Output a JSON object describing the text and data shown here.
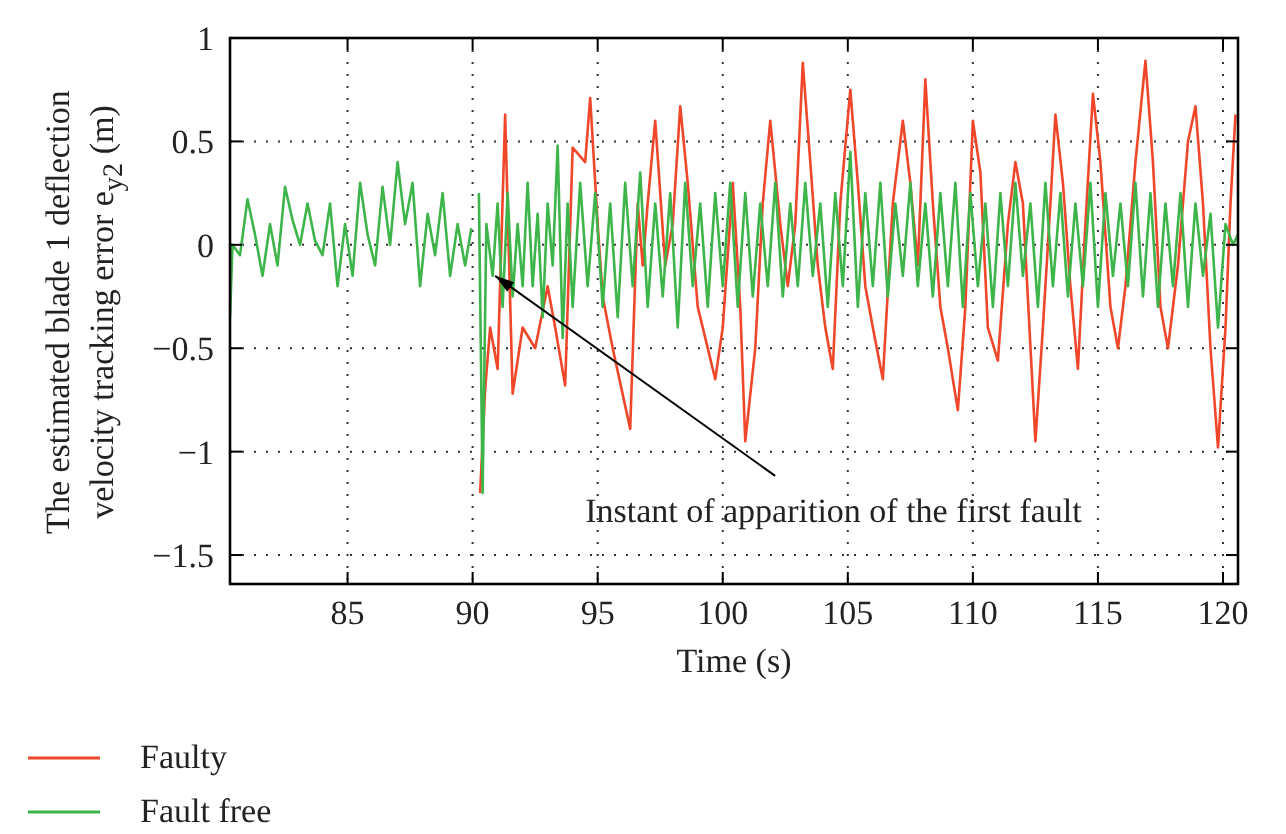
{
  "chart_data": {
    "type": "line",
    "xlabel": "Time (s)",
    "ylabel": "The estimated blade 1 deflection velocity tracking error e$_{y2}$ (m)",
    "xlim": [
      80.3,
      120.6
    ],
    "xticks": [
      85,
      90,
      95,
      100,
      105,
      110,
      115,
      120
    ],
    "ylim": [
      -1.64,
      1
    ],
    "yticks": [
      1,
      0.5,
      0,
      {
        "value": -0.5,
        "label": "−0.5"
      },
      {
        "value": -1,
        "label": "−1"
      },
      {
        "value": -1.5,
        "label": "−1.5"
      }
    ],
    "grid": true,
    "legend": "bottom",
    "marker": "none",
    "annotations": [
      {
        "text": "Instant of apparition of the first fault",
        "x": 90.9,
        "y": -0.15
      }
    ],
    "series": [
      {
        "name": "Faulty",
        "color": "#f0462a",
        "x": [
          90.3,
          90.5,
          90.7,
          91.0,
          91.3,
          91.6,
          92.0,
          92.5,
          93.0,
          93.3,
          93.7,
          94.0,
          94.5,
          94.7,
          95.0,
          95.2,
          95.6,
          96.3,
          96.6,
          96.8,
          97.0,
          97.3,
          97.7,
          98.0,
          98.3,
          98.6,
          99.0,
          99.7,
          100.0,
          100.4,
          100.7,
          100.9,
          101.3,
          101.6,
          101.9,
          102.3,
          102.6,
          102.9,
          103.2,
          103.5,
          103.8,
          104.1,
          104.4,
          104.7,
          105.1,
          105.4,
          105.7,
          106.0,
          106.4,
          106.8,
          107.2,
          107.5,
          107.8,
          108.1,
          108.4,
          108.7,
          109.0,
          109.4,
          109.7,
          110.0,
          110.3,
          110.6,
          111.0,
          111.4,
          111.7,
          112.0,
          112.5,
          112.8,
          113.1,
          113.3,
          113.6,
          113.9,
          114.2,
          114.5,
          114.8,
          115.1,
          115.5,
          115.8,
          116.1,
          116.5,
          116.9,
          117.2,
          117.5,
          117.8,
          118.2,
          118.6,
          118.9,
          119.2,
          119.5,
          119.8,
          120.1,
          120.3,
          120.5
        ],
        "values": [
          -1.2,
          -0.7,
          -0.4,
          -0.6,
          0.63,
          -0.72,
          -0.4,
          -0.5,
          -0.2,
          -0.4,
          -0.68,
          0.47,
          0.4,
          0.71,
          0.1,
          -0.25,
          -0.5,
          -0.89,
          0.2,
          -0.1,
          0.2,
          0.6,
          -0.1,
          0.1,
          0.67,
          0.3,
          -0.3,
          -0.65,
          -0.4,
          0.3,
          -0.3,
          -0.95,
          -0.5,
          0.2,
          0.6,
          0.1,
          -0.2,
          0.1,
          0.88,
          0.4,
          -0.1,
          -0.4,
          -0.6,
          0.2,
          0.75,
          0.3,
          -0.2,
          -0.4,
          -0.65,
          0.2,
          0.6,
          0.3,
          -0.1,
          0.8,
          0.2,
          -0.3,
          -0.5,
          -0.8,
          -0.3,
          0.6,
          0.35,
          -0.4,
          -0.56,
          0.1,
          0.4,
          0.2,
          -0.95,
          -0.4,
          0.2,
          0.63,
          0.3,
          -0.2,
          -0.6,
          0.1,
          0.73,
          0.4,
          -0.3,
          -0.5,
          -0.2,
          0.4,
          0.89,
          0.4,
          -0.3,
          -0.5,
          -0.1,
          0.5,
          0.67,
          0.2,
          -0.5,
          -0.98,
          -0.4,
          0.2,
          0.63
        ]
      },
      {
        "name": "Fault free",
        "color": "#3db54a",
        "x": [
          80.3,
          80.4,
          80.7,
          81.0,
          81.3,
          81.6,
          81.9,
          82.2,
          82.5,
          82.8,
          83.1,
          83.4,
          83.7,
          84.0,
          84.3,
          84.6,
          84.9,
          85.2,
          85.5,
          85.8,
          86.1,
          86.4,
          86.7,
          87.0,
          87.3,
          87.6,
          87.9,
          88.2,
          88.5,
          88.8,
          89.1,
          89.4,
          89.7,
          89.95,
          90.05,
          90.15,
          90.25,
          90.4,
          90.55,
          90.8,
          91.0,
          91.2,
          91.4,
          91.6,
          91.8,
          92.0,
          92.2,
          92.4,
          92.6,
          92.8,
          93.0,
          93.2,
          93.4,
          93.6,
          93.8,
          94.0,
          94.3,
          94.6,
          94.9,
          95.2,
          95.5,
          95.8,
          96.1,
          96.4,
          96.7,
          97.0,
          97.3,
          97.6,
          97.9,
          98.2,
          98.5,
          98.8,
          99.1,
          99.4,
          99.7,
          100.0,
          100.3,
          100.6,
          100.9,
          101.2,
          101.5,
          101.8,
          102.1,
          102.4,
          102.7,
          103.0,
          103.3,
          103.6,
          103.9,
          104.2,
          104.5,
          104.8,
          105.1,
          105.4,
          105.7,
          106.0,
          106.3,
          106.6,
          106.9,
          107.2,
          107.5,
          107.8,
          108.1,
          108.4,
          108.7,
          109.0,
          109.3,
          109.6,
          109.9,
          110.2,
          110.5,
          110.8,
          111.1,
          111.4,
          111.7,
          112.0,
          112.3,
          112.6,
          112.9,
          113.2,
          113.5,
          113.8,
          114.1,
          114.4,
          114.7,
          115.0,
          115.3,
          115.6,
          115.9,
          116.2,
          116.5,
          116.8,
          117.1,
          117.4,
          117.7,
          118.0,
          118.3,
          118.6,
          118.9,
          119.2,
          119.5,
          119.8,
          120.1,
          120.4,
          120.6
        ],
        "values": [
          -0.35,
          0.0,
          -0.05,
          0.22,
          0.05,
          -0.15,
          0.1,
          -0.1,
          0.28,
          0.12,
          0.0,
          0.2,
          0.02,
          -0.05,
          0.2,
          -0.2,
          0.1,
          -0.15,
          0.3,
          0.05,
          -0.1,
          0.28,
          0.0,
          0.4,
          0.1,
          0.3,
          -0.2,
          0.15,
          -0.05,
          0.25,
          -0.15,
          0.1,
          -0.1,
          0.08,
          null,
          null,
          0.25,
          -1.2,
          0.1,
          -0.15,
          0.2,
          -0.3,
          0.25,
          -0.25,
          0.1,
          -0.2,
          0.3,
          -0.2,
          0.15,
          -0.35,
          0.2,
          -0.1,
          0.48,
          -0.45,
          0.2,
          -0.3,
          0.3,
          -0.2,
          0.25,
          -0.3,
          0.2,
          -0.35,
          0.3,
          -0.2,
          0.35,
          -0.3,
          0.2,
          -0.25,
          0.25,
          -0.4,
          0.3,
          -0.2,
          0.2,
          -0.3,
          0.25,
          -0.2,
          0.3,
          -0.3,
          0.25,
          -0.25,
          0.2,
          -0.2,
          0.3,
          -0.25,
          0.2,
          -0.2,
          0.3,
          -0.15,
          0.2,
          -0.3,
          0.25,
          -0.2,
          0.45,
          -0.3,
          0.25,
          -0.2,
          0.3,
          -0.25,
          0.2,
          -0.15,
          0.3,
          -0.2,
          0.2,
          -0.25,
          0.25,
          -0.2,
          0.3,
          -0.3,
          0.25,
          -0.2,
          0.2,
          -0.3,
          0.25,
          -0.2,
          0.3,
          -0.15,
          0.2,
          -0.3,
          0.3,
          -0.2,
          0.25,
          -0.25,
          0.2,
          -0.2,
          0.3,
          -0.3,
          0.25,
          -0.15,
          0.2,
          -0.2,
          0.3,
          -0.25,
          0.25,
          -0.3,
          0.2,
          -0.2,
          0.25,
          -0.3,
          0.2,
          -0.15,
          0.15,
          -0.4,
          0.1,
          0.0,
          0.05
        ]
      }
    ]
  }
}
